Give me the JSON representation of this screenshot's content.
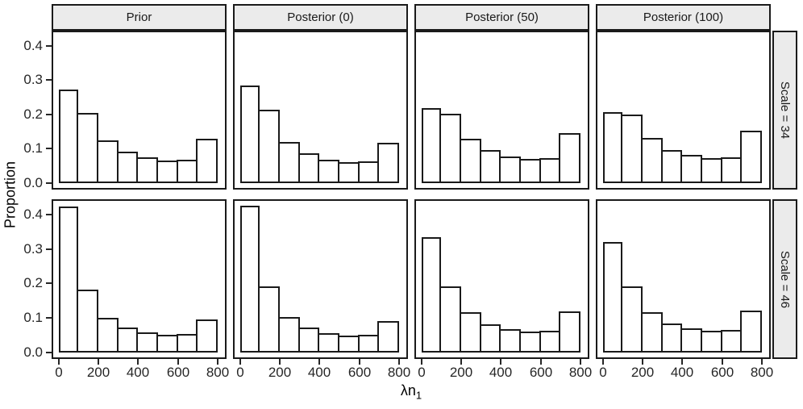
{
  "figure": {
    "background": "#ffffff",
    "panel_border_color": "#1a1a1a",
    "strip_fill": "#ebebeb",
    "bar_fill": "#ffffff",
    "bar_stroke": "#1a1a1a",
    "tick_label_color": "#262626"
  },
  "chart_data": {
    "type": "bar",
    "subtype": "faceted_histogram",
    "title": "",
    "xlabel": "λn₁",
    "xlabel_main": "λn",
    "xlabel_sub": "1",
    "ylabel": "Proportion",
    "legend": "none",
    "grid": false,
    "col_facets": [
      "Prior",
      "Posterior (0)",
      "Posterior (50)",
      "Posterior (100)"
    ],
    "row_facets": [
      "Scale = 34",
      "Scale = 46"
    ],
    "bin_edges": [
      0,
      100,
      200,
      300,
      400,
      500,
      600,
      700,
      800
    ],
    "x_ticks": [
      {
        "value": 0,
        "label": "0"
      },
      {
        "value": 200,
        "label": "200"
      },
      {
        "value": 400,
        "label": "400"
      },
      {
        "value": 600,
        "label": "600"
      },
      {
        "value": 800,
        "label": "800"
      }
    ],
    "y_ticks": [
      {
        "value": 0.0,
        "label": "0.0"
      },
      {
        "value": 0.1,
        "label": "0.1"
      },
      {
        "value": 0.2,
        "label": "0.2"
      },
      {
        "value": 0.3,
        "label": "0.3"
      },
      {
        "value": 0.4,
        "label": "0.4"
      }
    ],
    "xlim": [
      -35,
      845
    ],
    "ylim": [
      -0.019,
      0.4445
    ],
    "panels": [
      {
        "row": "Scale = 34",
        "col": "Prior",
        "values": [
          0.269,
          0.201,
          0.12,
          0.087,
          0.07,
          0.061,
          0.064,
          0.124
        ]
      },
      {
        "row": "Scale = 34",
        "col": "Posterior (0)",
        "values": [
          0.281,
          0.21,
          0.116,
          0.083,
          0.064,
          0.056,
          0.058,
          0.113
        ]
      },
      {
        "row": "Scale = 34",
        "col": "Posterior (50)",
        "values": [
          0.214,
          0.197,
          0.125,
          0.091,
          0.073,
          0.065,
          0.069,
          0.142
        ]
      },
      {
        "row": "Scale = 34",
        "col": "Posterior (100)",
        "values": [
          0.202,
          0.195,
          0.126,
          0.092,
          0.077,
          0.068,
          0.071,
          0.148
        ]
      },
      {
        "row": "Scale = 46",
        "col": "Prior",
        "values": [
          0.418,
          0.179,
          0.097,
          0.067,
          0.054,
          0.046,
          0.048,
          0.092
        ]
      },
      {
        "row": "Scale = 46",
        "col": "Posterior (0)",
        "values": [
          0.422,
          0.188,
          0.098,
          0.067,
          0.052,
          0.045,
          0.047,
          0.086
        ]
      },
      {
        "row": "Scale = 46",
        "col": "Posterior (50)",
        "values": [
          0.33,
          0.188,
          0.112,
          0.077,
          0.063,
          0.056,
          0.058,
          0.114
        ]
      },
      {
        "row": "Scale = 46",
        "col": "Posterior (100)",
        "values": [
          0.315,
          0.188,
          0.112,
          0.08,
          0.066,
          0.058,
          0.061,
          0.118
        ]
      }
    ]
  }
}
